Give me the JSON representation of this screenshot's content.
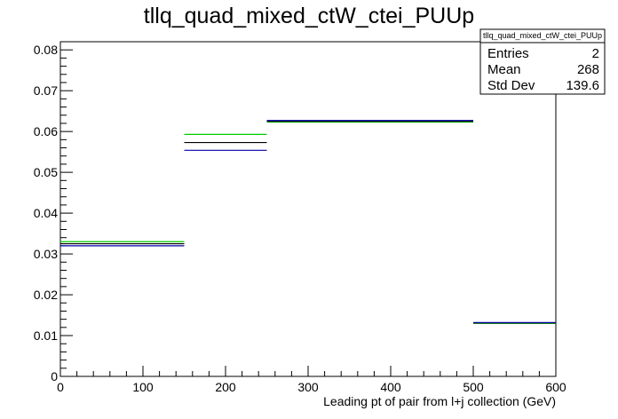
{
  "chart_data": {
    "type": "histogram",
    "title": "tllq_quad_mixed_ctW_ctei_PUUp",
    "xlabel": "Leading pt of pair from l+j collection (GeV)",
    "ylabel": "",
    "xlim": [
      0,
      600
    ],
    "ylim": [
      0,
      0.082
    ],
    "x_ticks": [
      "0",
      "100",
      "200",
      "300",
      "400",
      "500",
      "600"
    ],
    "y_ticks": [
      "0",
      "0.01",
      "0.02",
      "0.03",
      "0.04",
      "0.05",
      "0.06",
      "0.07",
      "0.08"
    ],
    "bin_edges": [
      0,
      150,
      250,
      500,
      600
    ],
    "series": [
      {
        "color": "#00cc00",
        "values": [
          0.033,
          0.0593,
          0.0623,
          0.013
        ]
      },
      {
        "color": "#000000",
        "values": [
          0.0325,
          0.0573,
          0.0625,
          0.0131
        ]
      },
      {
        "color": "#0000aa",
        "values": [
          0.032,
          0.0554,
          0.0627,
          0.0132
        ]
      }
    ],
    "stats_box": {
      "title": "tllq_quad_mixed_ctW_ctei_PUUp",
      "entries_label": "Entries",
      "entries_value": "2",
      "mean_label": "Mean",
      "mean_value": "268",
      "std_label": "Std Dev",
      "std_value": "139.6"
    },
    "grid": false,
    "legend": "none"
  }
}
